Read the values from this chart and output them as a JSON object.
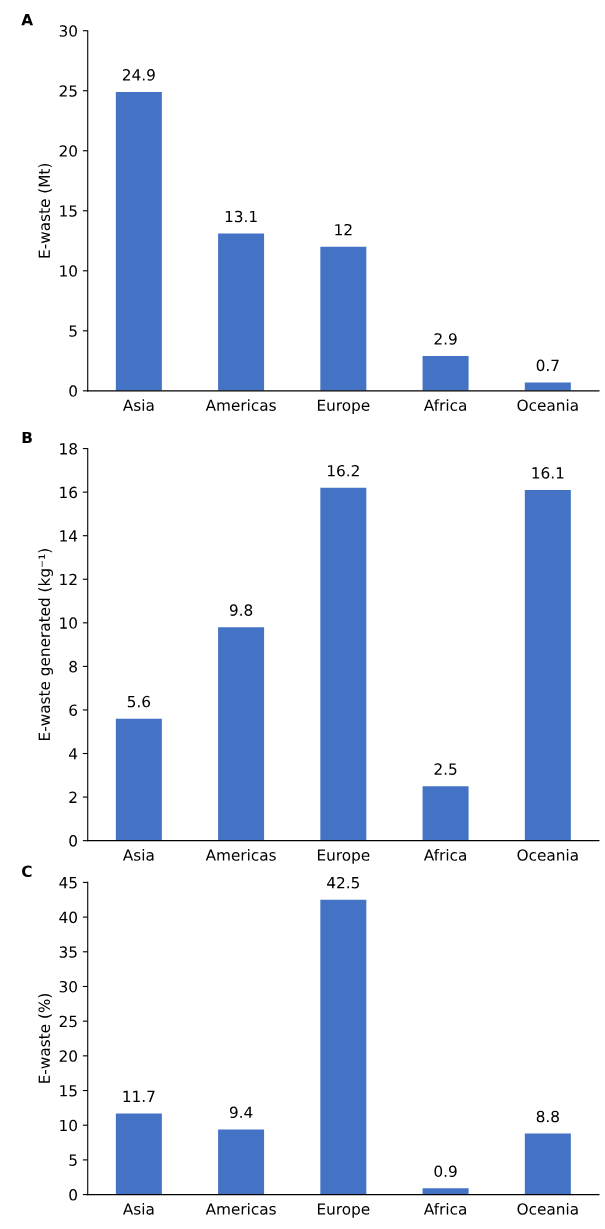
{
  "chart_data": [
    {
      "type": "bar",
      "title": "A",
      "ylabel": "E-waste (Mt)",
      "categories": [
        "Asia",
        "Americas",
        "Europe",
        "Africa",
        "Oceania"
      ],
      "values": [
        24.9,
        13.1,
        12,
        2.9,
        0.7
      ],
      "color": "#4472c4",
      "ylim": [
        0,
        30
      ],
      "yticks": [
        0,
        5,
        10,
        15,
        20,
        25,
        30
      ],
      "data_labels": true,
      "grid": false,
      "legend": false
    },
    {
      "type": "bar",
      "title": "B",
      "ylabel": "E-waste generated (kg⁻¹)",
      "categories": [
        "Asia",
        "Americas",
        "Europe",
        "Africa",
        "Oceania"
      ],
      "values": [
        5.6,
        9.8,
        16.2,
        2.5,
        16.1
      ],
      "color": "#4472c4",
      "ylim": [
        0,
        18
      ],
      "yticks": [
        0,
        2,
        4,
        6,
        8,
        10,
        12,
        14,
        16,
        18
      ],
      "data_labels": true,
      "grid": false,
      "legend": false
    },
    {
      "type": "bar",
      "title": "C",
      "ylabel": "E-waste (%)",
      "categories": [
        "Asia",
        "Americas",
        "Europe",
        "Africa",
        "Oceania"
      ],
      "values": [
        11.7,
        9.4,
        42.5,
        0.9,
        8.8
      ],
      "color": "#4472c4",
      "ylim": [
        0,
        45
      ],
      "yticks": [
        0,
        5,
        10,
        15,
        20,
        25,
        30,
        35,
        40,
        45
      ],
      "data_labels": true,
      "grid": false,
      "legend": false
    }
  ]
}
